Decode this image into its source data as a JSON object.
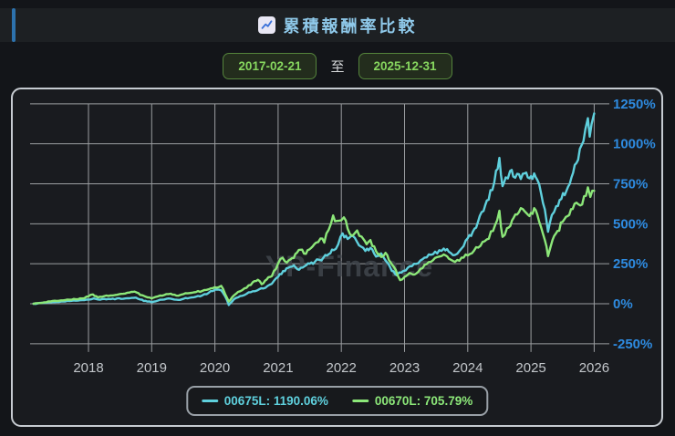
{
  "header": {
    "title": "累積報酬率比較",
    "title_color": "#8fc9ea",
    "accent_color": "#2d72ad",
    "icon": "line-chart-icon"
  },
  "date_range": {
    "start": "2017-02-21",
    "separator": "至",
    "end": "2025-12-31",
    "button_text_color": "#87d75f",
    "button_border_color": "#55843c"
  },
  "chart_data": {
    "type": "line",
    "title": "累積報酬率比較",
    "xlabel": "",
    "ylabel": "",
    "grid": true,
    "legend_position": "bottom",
    "watermark": "YP-Finance",
    "x_tick_years": [
      2018,
      2019,
      2020,
      2021,
      2022,
      2023,
      2024,
      2025,
      2026
    ],
    "x_tick_labels": [
      "2018",
      "2019",
      "2020",
      "2021",
      "2022",
      "2023",
      "2024",
      "2025",
      "2026"
    ],
    "y_tick_values": [
      1250,
      1000,
      750,
      500,
      250,
      0,
      -250
    ],
    "y_tick_labels": [
      "1250%",
      "1000%",
      "750%",
      "500%",
      "250%",
      "0%",
      "-250%"
    ],
    "xlim": [
      2017.13,
      2026.0
    ],
    "ylim": [
      -250,
      1250
    ],
    "colors": {
      "grid": "#9b9ea1",
      "y_tick_labels": "#2e8be0",
      "x_tick_labels": "#c2c6ca",
      "watermark": "#3e434a",
      "plot_bg": "#191b1f",
      "panel_border": "#c6cbd1"
    },
    "series": [
      {
        "name": "00675L",
        "legend_label": "00675L: 1190.06%",
        "final_value": 1190.06,
        "color": "#5fd0dd",
        "points": [
          [
            2017.13,
            0
          ],
          [
            2017.2,
            2
          ],
          [
            2017.3,
            6
          ],
          [
            2017.4,
            9
          ],
          [
            2017.5,
            11
          ],
          [
            2017.6,
            15
          ],
          [
            2017.7,
            17
          ],
          [
            2017.8,
            19
          ],
          [
            2017.9,
            22
          ],
          [
            2018.0,
            26
          ],
          [
            2018.08,
            33
          ],
          [
            2018.15,
            27
          ],
          [
            2018.25,
            30
          ],
          [
            2018.35,
            29
          ],
          [
            2018.45,
            33
          ],
          [
            2018.55,
            31
          ],
          [
            2018.65,
            34
          ],
          [
            2018.75,
            38
          ],
          [
            2018.82,
            26
          ],
          [
            2018.9,
            18
          ],
          [
            2019.0,
            9
          ],
          [
            2019.1,
            20
          ],
          [
            2019.2,
            27
          ],
          [
            2019.3,
            32
          ],
          [
            2019.42,
            24
          ],
          [
            2019.5,
            30
          ],
          [
            2019.6,
            37
          ],
          [
            2019.7,
            44
          ],
          [
            2019.8,
            52
          ],
          [
            2019.9,
            68
          ],
          [
            2020.0,
            88
          ],
          [
            2020.1,
            84
          ],
          [
            2020.16,
            48
          ],
          [
            2020.22,
            -8
          ],
          [
            2020.3,
            28
          ],
          [
            2020.4,
            48
          ],
          [
            2020.5,
            62
          ],
          [
            2020.6,
            78
          ],
          [
            2020.7,
            90
          ],
          [
            2020.8,
            100
          ],
          [
            2020.9,
            125
          ],
          [
            2021.0,
            168
          ],
          [
            2021.08,
            205
          ],
          [
            2021.16,
            225
          ],
          [
            2021.25,
            240
          ],
          [
            2021.33,
            212
          ],
          [
            2021.42,
            235
          ],
          [
            2021.5,
            250
          ],
          [
            2021.58,
            262
          ],
          [
            2021.65,
            275
          ],
          [
            2021.72,
            290
          ],
          [
            2021.8,
            310
          ],
          [
            2021.88,
            335
          ],
          [
            2021.95,
            370
          ],
          [
            2022.02,
            440
          ],
          [
            2022.1,
            405
          ],
          [
            2022.18,
            425
          ],
          [
            2022.28,
            365
          ],
          [
            2022.38,
            330
          ],
          [
            2022.46,
            350
          ],
          [
            2022.55,
            295
          ],
          [
            2022.63,
            315
          ],
          [
            2022.72,
            260
          ],
          [
            2022.8,
            205
          ],
          [
            2022.88,
            178
          ],
          [
            2022.95,
            195
          ],
          [
            2023.05,
            225
          ],
          [
            2023.15,
            250
          ],
          [
            2023.25,
            270
          ],
          [
            2023.35,
            290
          ],
          [
            2023.45,
            310
          ],
          [
            2023.55,
            335
          ],
          [
            2023.62,
            345
          ],
          [
            2023.7,
            325
          ],
          [
            2023.8,
            305
          ],
          [
            2023.9,
            345
          ],
          [
            2024.0,
            410
          ],
          [
            2024.08,
            450
          ],
          [
            2024.16,
            510
          ],
          [
            2024.25,
            580
          ],
          [
            2024.33,
            650
          ],
          [
            2024.42,
            760
          ],
          [
            2024.5,
            912
          ],
          [
            2024.55,
            735
          ],
          [
            2024.6,
            790
          ],
          [
            2024.67,
            830
          ],
          [
            2024.72,
            795
          ],
          [
            2024.78,
            812
          ],
          [
            2024.84,
            780
          ],
          [
            2024.9,
            815
          ],
          [
            2024.95,
            790
          ],
          [
            2025.0,
            798
          ],
          [
            2025.05,
            815
          ],
          [
            2025.1,
            775
          ],
          [
            2025.16,
            690
          ],
          [
            2025.22,
            590
          ],
          [
            2025.27,
            450
          ],
          [
            2025.33,
            555
          ],
          [
            2025.4,
            610
          ],
          [
            2025.48,
            655
          ],
          [
            2025.56,
            705
          ],
          [
            2025.64,
            790
          ],
          [
            2025.72,
            880
          ],
          [
            2025.8,
            990
          ],
          [
            2025.86,
            1090
          ],
          [
            2025.9,
            1160
          ],
          [
            2025.93,
            1045
          ],
          [
            2025.96,
            1125
          ],
          [
            2026.0,
            1190
          ]
        ]
      },
      {
        "name": "00670L",
        "legend_label": "00670L: 705.79%",
        "final_value": 705.79,
        "color": "#8ce779",
        "points": [
          [
            2017.13,
            0
          ],
          [
            2017.2,
            4
          ],
          [
            2017.3,
            9
          ],
          [
            2017.4,
            14
          ],
          [
            2017.5,
            17
          ],
          [
            2017.6,
            21
          ],
          [
            2017.7,
            25
          ],
          [
            2017.8,
            28
          ],
          [
            2017.9,
            33
          ],
          [
            2018.0,
            46
          ],
          [
            2018.07,
            58
          ],
          [
            2018.15,
            40
          ],
          [
            2018.25,
            48
          ],
          [
            2018.35,
            52
          ],
          [
            2018.45,
            56
          ],
          [
            2018.55,
            62
          ],
          [
            2018.65,
            70
          ],
          [
            2018.73,
            76
          ],
          [
            2018.82,
            55
          ],
          [
            2018.9,
            45
          ],
          [
            2019.0,
            33
          ],
          [
            2019.1,
            46
          ],
          [
            2019.2,
            55
          ],
          [
            2019.3,
            63
          ],
          [
            2019.42,
            50
          ],
          [
            2019.5,
            60
          ],
          [
            2019.6,
            67
          ],
          [
            2019.7,
            73
          ],
          [
            2019.8,
            80
          ],
          [
            2019.9,
            90
          ],
          [
            2020.0,
            103
          ],
          [
            2020.1,
            112
          ],
          [
            2020.16,
            62
          ],
          [
            2020.22,
            14
          ],
          [
            2020.3,
            52
          ],
          [
            2020.4,
            78
          ],
          [
            2020.5,
            100
          ],
          [
            2020.6,
            135
          ],
          [
            2020.68,
            150
          ],
          [
            2020.74,
            122
          ],
          [
            2020.82,
            152
          ],
          [
            2020.9,
            172
          ],
          [
            2021.0,
            252
          ],
          [
            2021.07,
            288
          ],
          [
            2021.14,
            258
          ],
          [
            2021.22,
            285
          ],
          [
            2021.3,
            320
          ],
          [
            2021.38,
            338
          ],
          [
            2021.44,
            312
          ],
          [
            2021.52,
            348
          ],
          [
            2021.6,
            382
          ],
          [
            2021.67,
            408
          ],
          [
            2021.73,
            382
          ],
          [
            2021.8,
            462
          ],
          [
            2021.87,
            552
          ],
          [
            2021.93,
            518
          ],
          [
            2022.0,
            522
          ],
          [
            2022.04,
            540
          ],
          [
            2022.1,
            470
          ],
          [
            2022.17,
            425
          ],
          [
            2022.25,
            458
          ],
          [
            2022.32,
            420
          ],
          [
            2022.4,
            372
          ],
          [
            2022.46,
            398
          ],
          [
            2022.55,
            328
          ],
          [
            2022.63,
            292
          ],
          [
            2022.7,
            318
          ],
          [
            2022.78,
            258
          ],
          [
            2022.86,
            212
          ],
          [
            2022.93,
            148
          ],
          [
            2023.0,
            168
          ],
          [
            2023.08,
            192
          ],
          [
            2023.16,
            183
          ],
          [
            2023.25,
            218
          ],
          [
            2023.35,
            248
          ],
          [
            2023.45,
            272
          ],
          [
            2023.55,
            295
          ],
          [
            2023.62,
            308
          ],
          [
            2023.7,
            282
          ],
          [
            2023.8,
            262
          ],
          [
            2023.9,
            288
          ],
          [
            2024.0,
            302
          ],
          [
            2024.1,
            332
          ],
          [
            2024.2,
            362
          ],
          [
            2024.3,
            402
          ],
          [
            2024.4,
            455
          ],
          [
            2024.5,
            582
          ],
          [
            2024.55,
            418
          ],
          [
            2024.62,
            472
          ],
          [
            2024.7,
            520
          ],
          [
            2024.78,
            558
          ],
          [
            2024.84,
            598
          ],
          [
            2024.9,
            578
          ],
          [
            2024.95,
            558
          ],
          [
            2025.0,
            568
          ],
          [
            2025.05,
            598
          ],
          [
            2025.1,
            558
          ],
          [
            2025.16,
            478
          ],
          [
            2025.22,
            398
          ],
          [
            2025.27,
            298
          ],
          [
            2025.34,
            398
          ],
          [
            2025.42,
            455
          ],
          [
            2025.5,
            512
          ],
          [
            2025.58,
            548
          ],
          [
            2025.66,
            592
          ],
          [
            2025.72,
            632
          ],
          [
            2025.78,
            615
          ],
          [
            2025.84,
            672
          ],
          [
            2025.9,
            728
          ],
          [
            2025.94,
            668
          ],
          [
            2026.0,
            706
          ]
        ]
      }
    ]
  }
}
